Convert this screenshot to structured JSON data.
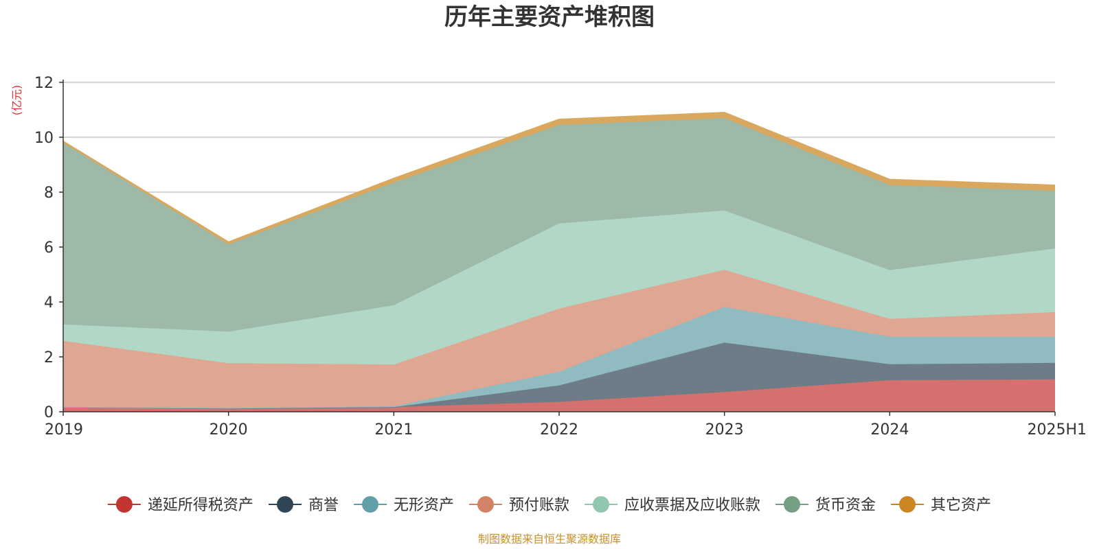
{
  "chart_data": {
    "type": "area",
    "stacked": true,
    "title": "历年主要资产堆积图",
    "ylabel": "(亿元)",
    "xlabel": "",
    "categories": [
      "2019",
      "2020",
      "2021",
      "2022",
      "2023",
      "2024",
      "2025H1"
    ],
    "ylim": [
      0,
      12
    ],
    "yticks": [
      0,
      2,
      4,
      6,
      8,
      10,
      12
    ],
    "grid": true,
    "legend_position": "bottom",
    "series": [
      {
        "name": "递延所得税资产",
        "color": "#c23531",
        "fill": "#d4716e",
        "values": [
          0.18,
          0.12,
          0.17,
          0.36,
          0.72,
          1.15,
          1.18
        ]
      },
      {
        "name": "商誉",
        "color": "#2f4554",
        "fill": "#6e7c87",
        "values": [
          0.0,
          0.0,
          0.0,
          0.6,
          1.8,
          0.58,
          0.6
        ]
      },
      {
        "name": "无形资产",
        "color": "#61a0a8",
        "fill": "#90bbc1",
        "values": [
          0.0,
          0.02,
          0.03,
          0.5,
          1.3,
          1.0,
          0.95
        ]
      },
      {
        "name": "预付账款",
        "color": "#d48265",
        "fill": "#dfa691",
        "values": [
          2.4,
          1.63,
          1.52,
          2.3,
          1.35,
          0.65,
          0.9
        ]
      },
      {
        "name": "应收票据及应收账款",
        "color": "#91c7ae",
        "fill": "#b1d8c6",
        "values": [
          0.6,
          1.15,
          2.16,
          3.1,
          2.16,
          1.78,
          2.32
        ]
      },
      {
        "name": "货币资金",
        "color": "#749f83",
        "fill": "#9eb9a7",
        "values": [
          6.62,
          3.18,
          4.47,
          3.59,
          3.37,
          3.1,
          2.1
        ]
      },
      {
        "name": "其它资产",
        "color": "#ca8622",
        "fill": "#d9a85e",
        "values": [
          0.05,
          0.08,
          0.15,
          0.2,
          0.2,
          0.2,
          0.2
        ]
      }
    ]
  },
  "source_note": "制图数据来自恒生聚源数据库"
}
